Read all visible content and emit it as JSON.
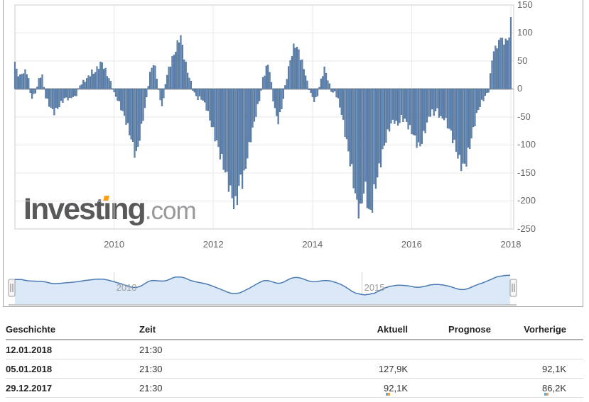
{
  "logo": {
    "brand": "Investing",
    "suffix": ".com",
    "accent_color": "#f9a11b"
  },
  "chart_data": {
    "type": "bar",
    "title": "",
    "xlabel": "",
    "ylabel": "",
    "x_unit": "year (weekly report bars)",
    "value_unit": "K",
    "xlim": [
      2008.0,
      2018.05
    ],
    "ylim": [
      -250,
      150
    ],
    "y_ticks": [
      150,
      100,
      50,
      0,
      -50,
      -100,
      -150,
      -200,
      -250
    ],
    "x_ticks": [
      2010,
      2012,
      2014,
      2016,
      2018
    ],
    "grid": true,
    "bar_color": "#6286b4",
    "bar_edge_color": "#44688f",
    "last_three_values": [
      86.2,
      92.1,
      127.9
    ],
    "anchors": [
      [
        2008.0,
        48
      ],
      [
        2008.04,
        30
      ],
      [
        2008.08,
        25
      ],
      [
        2008.12,
        20
      ],
      [
        2008.15,
        32
      ],
      [
        2008.19,
        28
      ],
      [
        2008.23,
        33
      ],
      [
        2008.27,
        22
      ],
      [
        2008.31,
        -8
      ],
      [
        2008.35,
        -15
      ],
      [
        2008.38,
        -12
      ],
      [
        2008.42,
        -5
      ],
      [
        2008.46,
        8
      ],
      [
        2008.5,
        22
      ],
      [
        2008.54,
        26
      ],
      [
        2008.57,
        18
      ],
      [
        2008.6,
        -10
      ],
      [
        2008.65,
        -20
      ],
      [
        2008.7,
        -30
      ],
      [
        2008.75,
        -38
      ],
      [
        2008.8,
        -42
      ],
      [
        2008.85,
        -35
      ],
      [
        2008.9,
        -30
      ],
      [
        2008.95,
        -22
      ],
      [
        2009.0,
        -18
      ],
      [
        2009.05,
        -15
      ],
      [
        2009.1,
        -20
      ],
      [
        2009.15,
        -12
      ],
      [
        2009.2,
        -16
      ],
      [
        2009.25,
        -8
      ],
      [
        2009.3,
        5
      ],
      [
        2009.35,
        10
      ],
      [
        2009.4,
        14
      ],
      [
        2009.45,
        18
      ],
      [
        2009.5,
        24
      ],
      [
        2009.55,
        30
      ],
      [
        2009.6,
        28
      ],
      [
        2009.65,
        35
      ],
      [
        2009.7,
        42
      ],
      [
        2009.75,
        48
      ],
      [
        2009.8,
        38
      ],
      [
        2009.85,
        28
      ],
      [
        2009.9,
        18
      ],
      [
        2009.95,
        8
      ],
      [
        2010.0,
        -8
      ],
      [
        2010.05,
        -15
      ],
      [
        2010.1,
        -25
      ],
      [
        2010.15,
        -36
      ],
      [
        2010.2,
        -48
      ],
      [
        2010.25,
        -60
      ],
      [
        2010.3,
        -75
      ],
      [
        2010.35,
        -90
      ],
      [
        2010.4,
        -110
      ],
      [
        2010.45,
        -118
      ],
      [
        2010.5,
        -95
      ],
      [
        2010.55,
        -70
      ],
      [
        2010.6,
        -45
      ],
      [
        2010.65,
        -20
      ],
      [
        2010.7,
        15
      ],
      [
        2010.75,
        38
      ],
      [
        2010.8,
        45
      ],
      [
        2010.85,
        30
      ],
      [
        2010.9,
        -5
      ],
      [
        2010.95,
        -30
      ],
      [
        2011.0,
        -20
      ],
      [
        2011.04,
        15
      ],
      [
        2011.1,
        35
      ],
      [
        2011.15,
        48
      ],
      [
        2011.2,
        60
      ],
      [
        2011.25,
        72
      ],
      [
        2011.3,
        85
      ],
      [
        2011.33,
        100
      ],
      [
        2011.38,
        75
      ],
      [
        2011.42,
        55
      ],
      [
        2011.46,
        38
      ],
      [
        2011.5,
        25
      ],
      [
        2011.55,
        12
      ],
      [
        2011.6,
        -5
      ],
      [
        2011.65,
        -12
      ],
      [
        2011.7,
        -18
      ],
      [
        2011.75,
        -15
      ],
      [
        2011.8,
        -22
      ],
      [
        2011.85,
        -30
      ],
      [
        2011.9,
        -45
      ],
      [
        2011.95,
        -60
      ],
      [
        2012.0,
        -75
      ],
      [
        2012.05,
        -90
      ],
      [
        2012.1,
        -105
      ],
      [
        2012.15,
        -120
      ],
      [
        2012.2,
        -135
      ],
      [
        2012.25,
        -150
      ],
      [
        2012.3,
        -165
      ],
      [
        2012.35,
        -185
      ],
      [
        2012.4,
        -200
      ],
      [
        2012.44,
        -211
      ],
      [
        2012.48,
        -195
      ],
      [
        2012.52,
        -175
      ],
      [
        2012.56,
        -155
      ],
      [
        2012.6,
        -170
      ],
      [
        2012.65,
        -140
      ],
      [
        2012.7,
        -115
      ],
      [
        2012.75,
        -90
      ],
      [
        2012.8,
        -70
      ],
      [
        2012.85,
        -50
      ],
      [
        2012.9,
        -30
      ],
      [
        2012.95,
        -12
      ],
      [
        2013.0,
        18
      ],
      [
        2013.05,
        32
      ],
      [
        2013.1,
        45
      ],
      [
        2013.15,
        28
      ],
      [
        2013.2,
        -15
      ],
      [
        2013.25,
        -40
      ],
      [
        2013.3,
        -60
      ],
      [
        2013.35,
        -45
      ],
      [
        2013.4,
        -25
      ],
      [
        2013.45,
        5
      ],
      [
        2013.5,
        30
      ],
      [
        2013.55,
        50
      ],
      [
        2013.6,
        68
      ],
      [
        2013.65,
        80
      ],
      [
        2013.7,
        72
      ],
      [
        2013.75,
        60
      ],
      [
        2013.8,
        45
      ],
      [
        2013.85,
        30
      ],
      [
        2013.9,
        10
      ],
      [
        2013.95,
        -5
      ],
      [
        2014.0,
        -15
      ],
      [
        2014.05,
        -22
      ],
      [
        2014.1,
        -12
      ],
      [
        2014.15,
        8
      ],
      [
        2014.2,
        25
      ],
      [
        2014.25,
        38
      ],
      [
        2014.3,
        20
      ],
      [
        2014.35,
        5
      ],
      [
        2014.4,
        -8
      ],
      [
        2014.45,
        -5
      ],
      [
        2014.5,
        -15
      ],
      [
        2014.55,
        -30
      ],
      [
        2014.6,
        -50
      ],
      [
        2014.65,
        -75
      ],
      [
        2014.7,
        -100
      ],
      [
        2014.75,
        -125
      ],
      [
        2014.8,
        -150
      ],
      [
        2014.85,
        -180
      ],
      [
        2014.9,
        -210
      ],
      [
        2014.95,
        -228
      ],
      [
        2015.0,
        -200
      ],
      [
        2015.05,
        -170
      ],
      [
        2015.1,
        -195
      ],
      [
        2015.15,
        -230
      ],
      [
        2015.2,
        -210
      ],
      [
        2015.25,
        -180
      ],
      [
        2015.3,
        -160
      ],
      [
        2015.35,
        -140
      ],
      [
        2015.4,
        -120
      ],
      [
        2015.45,
        -100
      ],
      [
        2015.5,
        -85
      ],
      [
        2015.55,
        -70
      ],
      [
        2015.6,
        -60
      ],
      [
        2015.65,
        -55
      ],
      [
        2015.7,
        -65
      ],
      [
        2015.75,
        -60
      ],
      [
        2015.8,
        -50
      ],
      [
        2015.85,
        -55
      ],
      [
        2015.9,
        -60
      ],
      [
        2015.95,
        -70
      ],
      [
        2016.0,
        -75
      ],
      [
        2016.05,
        -85
      ],
      [
        2016.1,
        -95
      ],
      [
        2016.15,
        -105
      ],
      [
        2016.2,
        -95
      ],
      [
        2016.25,
        -80
      ],
      [
        2016.3,
        -65
      ],
      [
        2016.35,
        -50
      ],
      [
        2016.4,
        -40
      ],
      [
        2016.45,
        -45
      ],
      [
        2016.5,
        -35
      ],
      [
        2016.55,
        -45
      ],
      [
        2016.6,
        -55
      ],
      [
        2016.65,
        -50
      ],
      [
        2016.7,
        -60
      ],
      [
        2016.75,
        -70
      ],
      [
        2016.8,
        -80
      ],
      [
        2016.85,
        -95
      ],
      [
        2016.9,
        -110
      ],
      [
        2016.95,
        -125
      ],
      [
        2017.0,
        -135
      ],
      [
        2017.05,
        -140
      ],
      [
        2017.1,
        -130
      ],
      [
        2017.15,
        -110
      ],
      [
        2017.2,
        -90
      ],
      [
        2017.25,
        -70
      ],
      [
        2017.3,
        -50
      ],
      [
        2017.35,
        -35
      ],
      [
        2017.4,
        -25
      ],
      [
        2017.45,
        -18
      ],
      [
        2017.5,
        -10
      ],
      [
        2017.55,
        -5
      ],
      [
        2017.6,
        40
      ],
      [
        2017.65,
        65
      ],
      [
        2017.7,
        80
      ],
      [
        2017.73,
        70
      ],
      [
        2017.76,
        88
      ],
      [
        2017.79,
        92
      ],
      [
        2017.81,
        85
      ],
      [
        2017.84,
        95
      ],
      [
        2017.86,
        78
      ],
      [
        2017.89,
        90
      ],
      [
        2017.93,
        86.2
      ],
      [
        2017.97,
        92.1
      ],
      [
        2018.02,
        127.9
      ]
    ]
  },
  "navigator": {
    "labels": [
      "2010",
      "2015"
    ],
    "tick_years": [
      2010,
      2015
    ],
    "line_color": "#4a7ab2",
    "fill_color": "#dae8f8"
  },
  "table": {
    "headers": [
      "Geschichte",
      "Zeit",
      "Aktuell",
      "Prognose",
      "Vorherige"
    ],
    "rows": [
      {
        "date": "12.01.2018",
        "time": "21:30",
        "aktuell": "",
        "prognose": "",
        "vorherige": ""
      },
      {
        "date": "05.01.2018",
        "time": "21:30",
        "aktuell": "127,9K",
        "prognose": "",
        "vorherige": "92,1K"
      },
      {
        "date": "29.12.2017",
        "time": "21:30",
        "aktuell": "92,1K",
        "prognose": "",
        "vorherige": "86,2K"
      }
    ]
  },
  "colors": {
    "grid": "#e7e7e7",
    "zero_line": "#cbcbcb",
    "plot_border": "#cccccc",
    "frame_border": "#a8a8a8",
    "axis_text": "#666666"
  }
}
